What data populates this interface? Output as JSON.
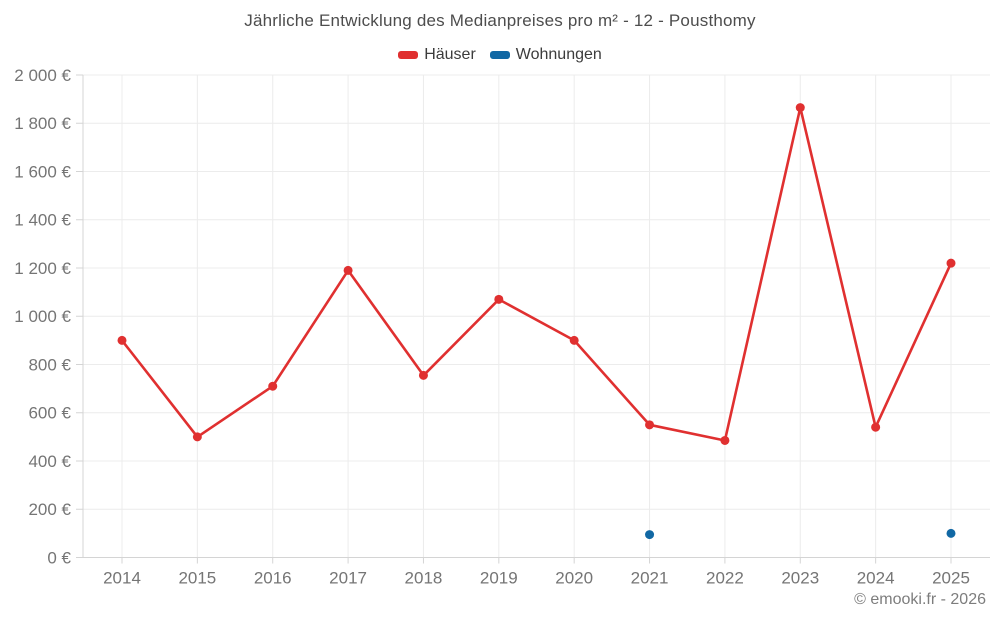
{
  "title": "Jährliche Entwicklung des Medianpreises pro m² - 12 - Pousthomy",
  "legend": {
    "items": [
      {
        "label": "Häuser",
        "color": "#e03030"
      },
      {
        "label": "Wohnungen",
        "color": "#1168a4"
      }
    ]
  },
  "footer": "© emooki.fr - 2026",
  "chart_data": {
    "type": "line",
    "title": "Jährliche Entwicklung des Medianpreises pro m² - 12 - Pousthomy",
    "categories": [
      "2014",
      "2015",
      "2016",
      "2017",
      "2018",
      "2019",
      "2020",
      "2021",
      "2022",
      "2023",
      "2024",
      "2025"
    ],
    "series": [
      {
        "name": "Häuser",
        "color": "#e03030",
        "style": "line+points",
        "values": [
          900,
          500,
          710,
          1190,
          755,
          1070,
          900,
          550,
          485,
          1865,
          540,
          1220
        ]
      },
      {
        "name": "Wohnungen",
        "color": "#1168a4",
        "style": "points",
        "values": [
          null,
          null,
          null,
          null,
          null,
          null,
          null,
          95,
          null,
          null,
          null,
          100
        ]
      }
    ],
    "xlabel": "",
    "ylabel": "",
    "ylim": [
      0,
      2000
    ],
    "y_tick_step": 200,
    "y_tick_labels": [
      "0 €",
      "200 €",
      "400 €",
      "600 €",
      "800 €",
      "1 000 €",
      "1 200 €",
      "1 400 €",
      "1 600 €",
      "1 800 €",
      "2 000 €"
    ],
    "grid": "horizontal+vertical",
    "legend_position": "top"
  }
}
